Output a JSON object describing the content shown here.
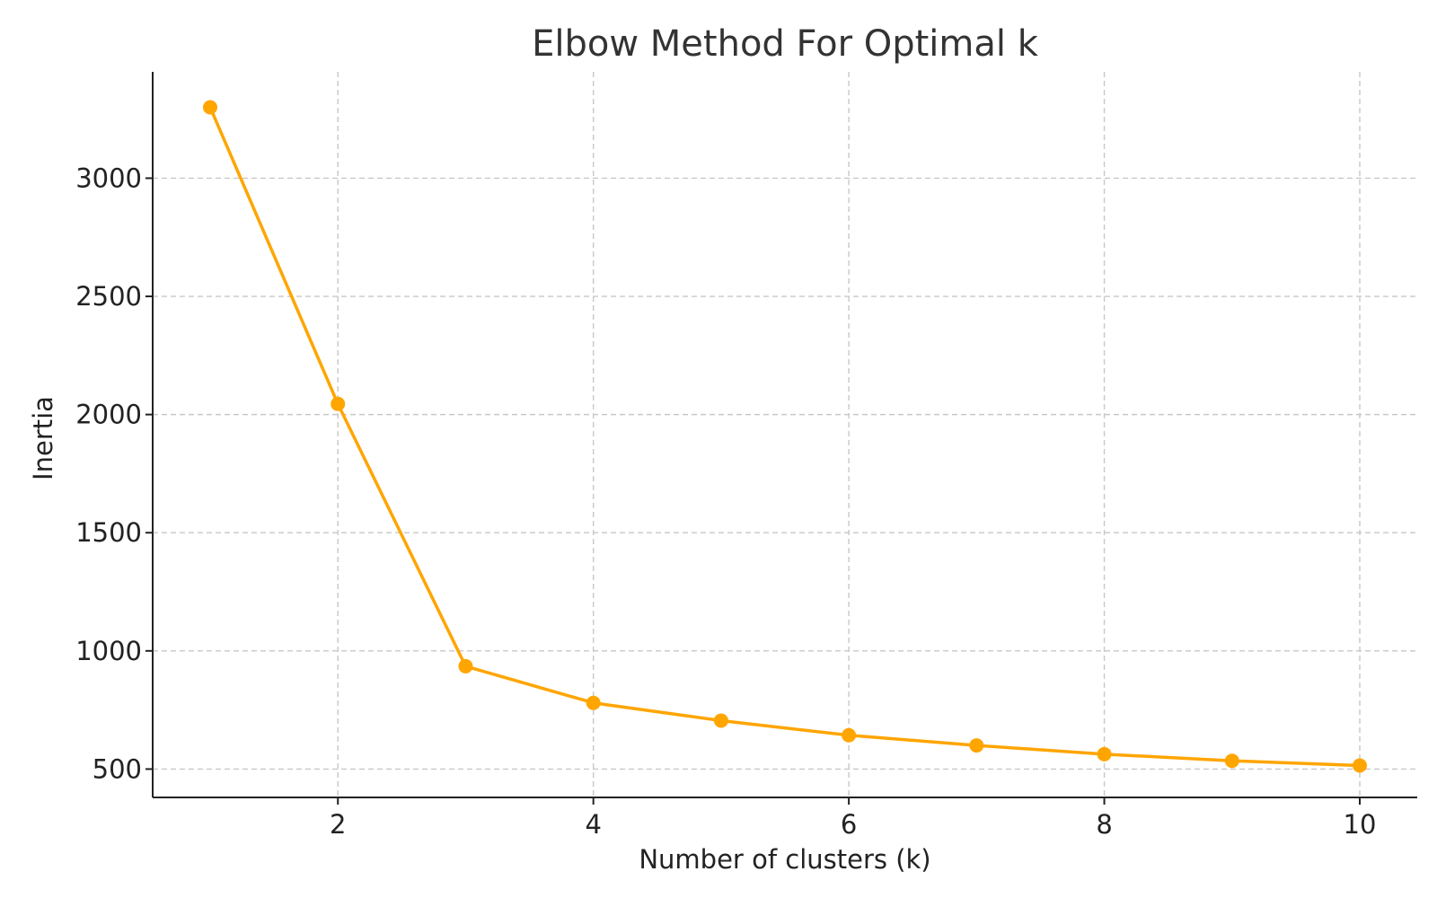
{
  "chart_data": {
    "type": "line",
    "title": "Elbow Method For Optimal k",
    "xlabel": "Number of clusters (k)",
    "ylabel": "Inertia",
    "xlim": [
      0.55,
      10.45
    ],
    "ylim": [
      380,
      3450
    ],
    "xticks": [
      2,
      4,
      6,
      8,
      10
    ],
    "yticks": [
      500,
      1000,
      1500,
      2000,
      2500,
      3000
    ],
    "grid": true,
    "grid_style": "dashed",
    "series": [
      {
        "color": "#FFA500",
        "marker": "circle",
        "x": [
          1,
          2,
          3,
          4,
          5,
          6,
          7,
          8,
          9,
          10
        ],
        "y": [
          3300,
          2045,
          935,
          780,
          705,
          643,
          600,
          563,
          535,
          515
        ]
      }
    ]
  }
}
